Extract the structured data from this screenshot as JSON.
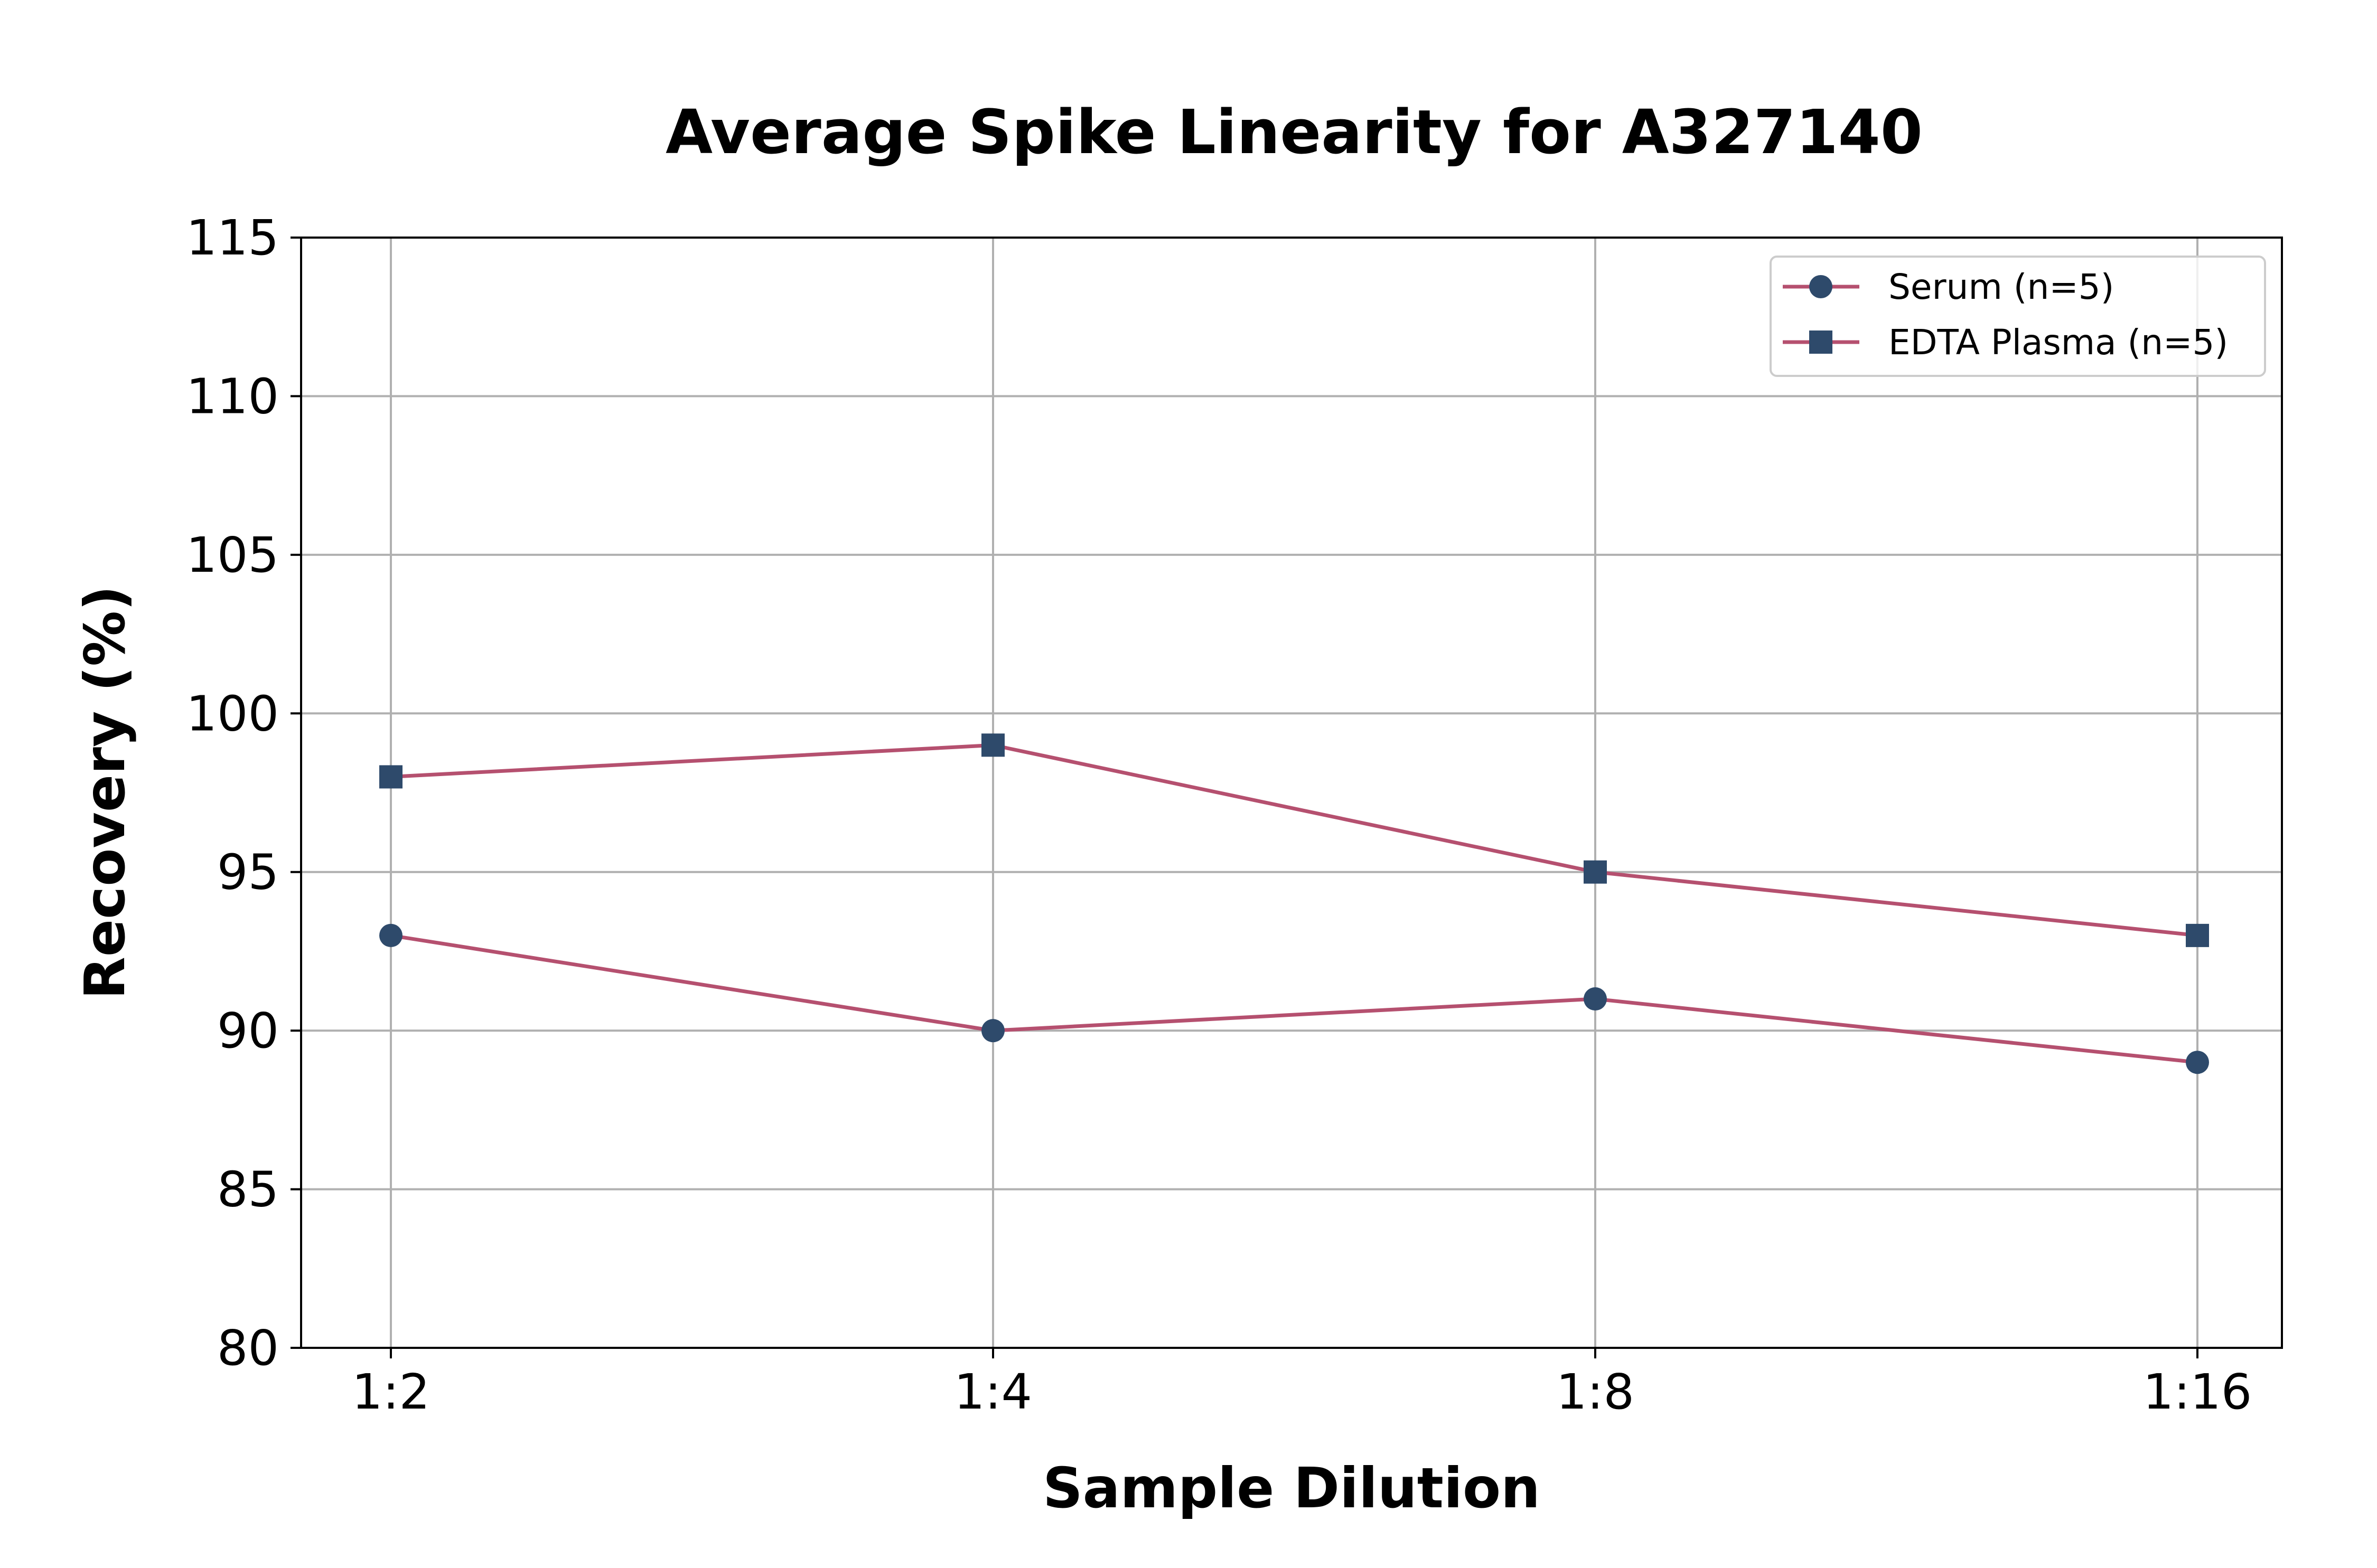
{
  "chart_data": {
    "type": "line",
    "title": "Average Spike Linearity for A327140",
    "xlabel": "Sample Dilution",
    "ylabel": "Recovery (%)",
    "categories": [
      "1:2",
      "1:4",
      "1:8",
      "1:16"
    ],
    "ylim": [
      80,
      115
    ],
    "yticks": [
      80,
      85,
      90,
      95,
      100,
      105,
      110,
      115
    ],
    "grid": true,
    "legend_position": "top-right",
    "series": [
      {
        "name": "Serum (n=5)",
        "marker": "circle",
        "values": [
          93,
          90,
          91,
          89
        ]
      },
      {
        "name": "EDTA Plasma (n=5)",
        "marker": "square",
        "values": [
          98,
          99,
          95,
          93
        ]
      }
    ],
    "colors": {
      "line": "#b5506f",
      "marker": "#2e4a6b",
      "grid": "#b0b0b0",
      "axis": "#000000"
    }
  }
}
